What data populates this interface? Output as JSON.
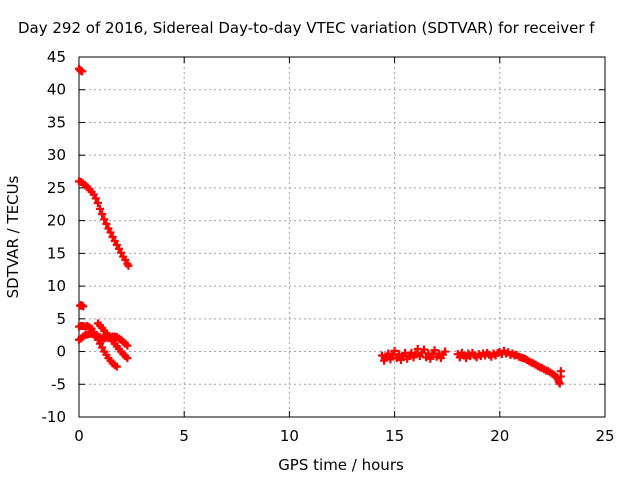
{
  "chart_data": {
    "type": "scatter",
    "title": "Day 292 of 2016, Sidereal Day-to-day VTEC variation (SDTVAR) for receiver f",
    "xlabel": "GPS time / hours",
    "ylabel": "SDTVAR / TECUs",
    "xlim": [
      0,
      25
    ],
    "ylim": [
      -10,
      45
    ],
    "xticks": [
      0,
      5,
      10,
      15,
      20,
      25
    ],
    "yticks": [
      -10,
      -5,
      0,
      5,
      10,
      15,
      20,
      25,
      30,
      35,
      40,
      45
    ],
    "grid": true,
    "marker_color": "#ff0000",
    "marker": "plus",
    "series": [
      {
        "points": [
          [
            0.0,
            43.2
          ],
          [
            0.05,
            43.0
          ],
          [
            0.1,
            42.9
          ],
          [
            0.15,
            42.8
          ],
          [
            0.0,
            26.0
          ],
          [
            0.1,
            25.9
          ],
          [
            0.2,
            25.7
          ],
          [
            0.3,
            25.4
          ],
          [
            0.4,
            25.1
          ],
          [
            0.5,
            24.8
          ],
          [
            0.6,
            24.4
          ],
          [
            0.7,
            24.0
          ],
          [
            0.8,
            23.4
          ],
          [
            0.9,
            22.7
          ],
          [
            1.0,
            21.8
          ],
          [
            1.1,
            21.0
          ],
          [
            1.2,
            20.2
          ],
          [
            1.3,
            19.5
          ],
          [
            1.4,
            18.8
          ],
          [
            1.5,
            18.2
          ],
          [
            1.6,
            17.5
          ],
          [
            1.7,
            16.9
          ],
          [
            1.8,
            16.3
          ],
          [
            1.9,
            15.7
          ],
          [
            2.0,
            15.1
          ],
          [
            2.1,
            14.5
          ],
          [
            2.2,
            14.0
          ],
          [
            2.3,
            13.4
          ],
          [
            2.35,
            13.1
          ],
          [
            0.05,
            7.0
          ],
          [
            0.1,
            7.1
          ],
          [
            0.15,
            7.0
          ],
          [
            0.2,
            6.9
          ],
          [
            0.0,
            3.8
          ],
          [
            0.1,
            3.9
          ],
          [
            0.2,
            3.9
          ],
          [
            0.3,
            3.8
          ],
          [
            0.4,
            3.9
          ],
          [
            0.5,
            3.7
          ],
          [
            0.6,
            3.5
          ],
          [
            0.7,
            3.0
          ],
          [
            0.8,
            2.4
          ],
          [
            0.9,
            1.8
          ],
          [
            1.0,
            1.2
          ],
          [
            1.1,
            0.6
          ],
          [
            1.2,
            0.0
          ],
          [
            1.3,
            -0.5
          ],
          [
            1.4,
            -1.0
          ],
          [
            1.5,
            -1.4
          ],
          [
            1.6,
            -1.8
          ],
          [
            1.7,
            -2.1
          ],
          [
            1.8,
            -2.3
          ],
          [
            0.0,
            1.8
          ],
          [
            0.1,
            2.0
          ],
          [
            0.2,
            2.3
          ],
          [
            0.3,
            2.5
          ],
          [
            0.4,
            2.6
          ],
          [
            0.5,
            2.7
          ],
          [
            0.6,
            2.7
          ],
          [
            0.7,
            2.6
          ],
          [
            0.8,
            2.5
          ],
          [
            0.9,
            2.3
          ],
          [
            1.0,
            2.2
          ],
          [
            1.1,
            2.0
          ],
          [
            1.2,
            2.0
          ],
          [
            1.3,
            2.1
          ],
          [
            1.4,
            2.1
          ],
          [
            1.5,
            2.2
          ],
          [
            1.6,
            2.3
          ],
          [
            1.7,
            2.3
          ],
          [
            1.8,
            2.2
          ],
          [
            1.9,
            2.0
          ],
          [
            2.0,
            1.8
          ],
          [
            2.1,
            1.5
          ],
          [
            2.2,
            1.2
          ],
          [
            2.3,
            0.9
          ],
          [
            0.9,
            4.3
          ],
          [
            1.0,
            4.0
          ],
          [
            1.1,
            3.6
          ],
          [
            1.2,
            3.2
          ],
          [
            1.3,
            2.8
          ],
          [
            1.4,
            2.4
          ],
          [
            1.5,
            2.0
          ],
          [
            1.6,
            1.6
          ],
          [
            1.7,
            1.2
          ],
          [
            1.8,
            0.8
          ],
          [
            1.9,
            0.4
          ],
          [
            2.0,
            0.0
          ],
          [
            2.1,
            -0.4
          ],
          [
            2.2,
            -0.7
          ],
          [
            2.3,
            -1.0
          ],
          [
            14.4,
            -0.6
          ],
          [
            14.5,
            -1.4
          ],
          [
            14.6,
            -0.9
          ],
          [
            14.7,
            -0.3
          ],
          [
            14.8,
            -1.2
          ],
          [
            14.9,
            -0.6
          ],
          [
            15.0,
            0.1
          ],
          [
            15.1,
            -1.0
          ],
          [
            15.2,
            -0.4
          ],
          [
            15.3,
            -1.3
          ],
          [
            15.4,
            -0.7
          ],
          [
            15.5,
            -0.2
          ],
          [
            15.6,
            -1.1
          ],
          [
            15.7,
            -0.6
          ],
          [
            15.8,
            -0.2
          ],
          [
            15.9,
            -0.9
          ],
          [
            16.0,
            -0.4
          ],
          [
            16.1,
            0.4
          ],
          [
            16.2,
            -0.7
          ],
          [
            16.3,
            -0.2
          ],
          [
            16.4,
            0.3
          ],
          [
            16.5,
            -0.9
          ],
          [
            16.6,
            -0.3
          ],
          [
            16.7,
            -1.1
          ],
          [
            16.8,
            -0.4
          ],
          [
            16.9,
            0.2
          ],
          [
            17.0,
            -0.8
          ],
          [
            17.1,
            -0.3
          ],
          [
            17.2,
            -1.0
          ],
          [
            17.3,
            -0.5
          ],
          [
            17.4,
            0.0
          ],
          [
            18.0,
            -0.4
          ],
          [
            18.1,
            -0.9
          ],
          [
            18.2,
            -0.2
          ],
          [
            18.3,
            -0.6
          ],
          [
            18.4,
            -1.0
          ],
          [
            18.5,
            -0.3
          ],
          [
            18.6,
            -0.7
          ],
          [
            18.7,
            -0.2
          ],
          [
            18.8,
            -0.6
          ],
          [
            18.9,
            -0.9
          ],
          [
            19.0,
            -0.4
          ],
          [
            19.1,
            -0.7
          ],
          [
            19.2,
            -0.3
          ],
          [
            19.3,
            -0.6
          ],
          [
            19.4,
            -0.2
          ],
          [
            19.5,
            -0.5
          ],
          [
            19.6,
            -0.8
          ],
          [
            19.7,
            -0.3
          ],
          [
            19.8,
            -0.6
          ],
          [
            19.9,
            -0.2
          ],
          [
            20.0,
            -0.1
          ],
          [
            20.1,
            -0.4
          ],
          [
            20.2,
            0.1
          ],
          [
            20.3,
            -0.3
          ],
          [
            20.4,
            -0.1
          ],
          [
            20.5,
            -0.5
          ],
          [
            20.6,
            -0.3
          ],
          [
            20.7,
            -0.6
          ],
          [
            20.8,
            -0.5
          ],
          [
            20.9,
            -0.8
          ],
          [
            21.0,
            -0.9
          ],
          [
            21.1,
            -1.0
          ],
          [
            21.2,
            -1.1
          ],
          [
            21.3,
            -1.3
          ],
          [
            21.4,
            -1.5
          ],
          [
            21.5,
            -1.7
          ],
          [
            21.6,
            -1.8
          ],
          [
            21.7,
            -2.0
          ],
          [
            21.8,
            -2.2
          ],
          [
            21.9,
            -2.4
          ],
          [
            22.0,
            -2.5
          ],
          [
            22.1,
            -2.7
          ],
          [
            22.2,
            -2.9
          ],
          [
            22.3,
            -3.0
          ],
          [
            22.4,
            -3.2
          ],
          [
            22.5,
            -3.4
          ],
          [
            22.6,
            -3.6
          ],
          [
            22.7,
            -3.9
          ],
          [
            22.75,
            -4.2
          ],
          [
            22.8,
            -4.6
          ],
          [
            22.85,
            -4.9
          ],
          [
            22.9,
            -3.0
          ],
          [
            22.9,
            -3.8
          ]
        ]
      }
    ]
  }
}
